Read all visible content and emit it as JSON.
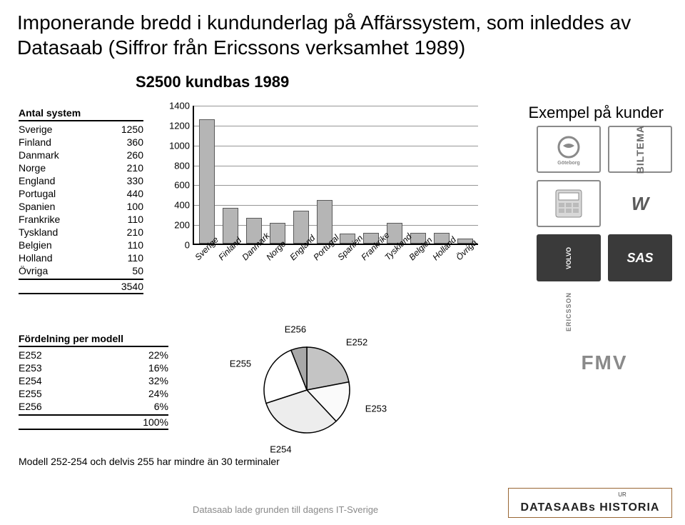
{
  "title_line1": "Imponerande bredd i kundunderlag på Affärssystem, som inleddes av",
  "title_line2": "Datasaab (Siffror från Ericssons verksamhet 1989)",
  "chart_title": "S2500 kundbas 1989",
  "example_title": "Exempel på kunder",
  "systems_table": {
    "header": "Antal system",
    "rows": [
      {
        "label": "Sverige",
        "value": "1250"
      },
      {
        "label": "Finland",
        "value": "360"
      },
      {
        "label": "Danmark",
        "value": "260"
      },
      {
        "label": "Norge",
        "value": "210"
      },
      {
        "label": "England",
        "value": "330"
      },
      {
        "label": "Portugal",
        "value": "440"
      },
      {
        "label": "Spanien",
        "value": "100"
      },
      {
        "label": "Frankrike",
        "value": "110"
      },
      {
        "label": "Tyskland",
        "value": "210"
      },
      {
        "label": "Belgien",
        "value": "110"
      },
      {
        "label": "Holland",
        "value": "110"
      },
      {
        "label": "Övriga",
        "value": "50"
      }
    ],
    "total": "3540"
  },
  "bar_chart": {
    "type": "bar",
    "ylim_max": 1400,
    "ytick_step": 200,
    "ytick_labels": [
      "0",
      "200",
      "400",
      "600",
      "800",
      "1000",
      "1200",
      "1400"
    ],
    "categories": [
      "Sverige",
      "Finland",
      "Danmark",
      "Norge",
      "England",
      "Portugal",
      "Spanien",
      "Frankrike",
      "Tyskland",
      "Belgien",
      "Holland",
      "Övriga"
    ],
    "values": [
      1250,
      360,
      260,
      210,
      330,
      440,
      100,
      110,
      210,
      110,
      110,
      50
    ],
    "bar_color": "#b5b5b5",
    "bar_border_color": "#5a5a5a",
    "grid_color": "#969696",
    "axis_color": "#000000",
    "label_fontsize": 12,
    "label_style": "italic"
  },
  "model_table": {
    "header": "Fördelning per modell",
    "rows": [
      {
        "label": "E252",
        "pct": "22%"
      },
      {
        "label": "E253",
        "pct": "16%"
      },
      {
        "label": "E254",
        "pct": "32%"
      },
      {
        "label": "E255",
        "pct": "24%"
      },
      {
        "label": "E256",
        "pct": "6%"
      }
    ],
    "total": "100%"
  },
  "pie": {
    "type": "pie",
    "slices": [
      {
        "label": "E252",
        "pct": 22,
        "fill": "#c4c4c4"
      },
      {
        "label": "E253",
        "pct": 16,
        "fill": "#fafafa"
      },
      {
        "label": "E254",
        "pct": 32,
        "fill": "#ededed"
      },
      {
        "label": "E255",
        "pct": 24,
        "fill": "#ffffff"
      },
      {
        "label": "E256",
        "pct": 6,
        "fill": "#a8a8a8"
      }
    ],
    "stroke": "#000000",
    "radius": 60,
    "label_fontsize": 13
  },
  "note": "Modell 252-254 och delvis 255 har mindre än 30 terminaler",
  "logos": [
    {
      "name": "Göteborg",
      "variant": "outline"
    },
    {
      "name": "BILTEMA",
      "variant": "outline"
    },
    {
      "name": "calculator",
      "variant": "outline"
    },
    {
      "name": "VR",
      "variant": "plain"
    },
    {
      "name": "Volvo",
      "variant": "dark"
    },
    {
      "name": "SAS",
      "variant": "dark"
    },
    {
      "name": "ERICSSON",
      "variant": "plain"
    },
    {
      "name": "FMV",
      "variant": "tall"
    }
  ],
  "footer_text": "Datasaab lade grunden till dagens IT-Sverige",
  "footer_logo_top": "UR",
  "footer_logo_main": "DATASAABs HISTORIA",
  "footer_logo_border": "#996633"
}
